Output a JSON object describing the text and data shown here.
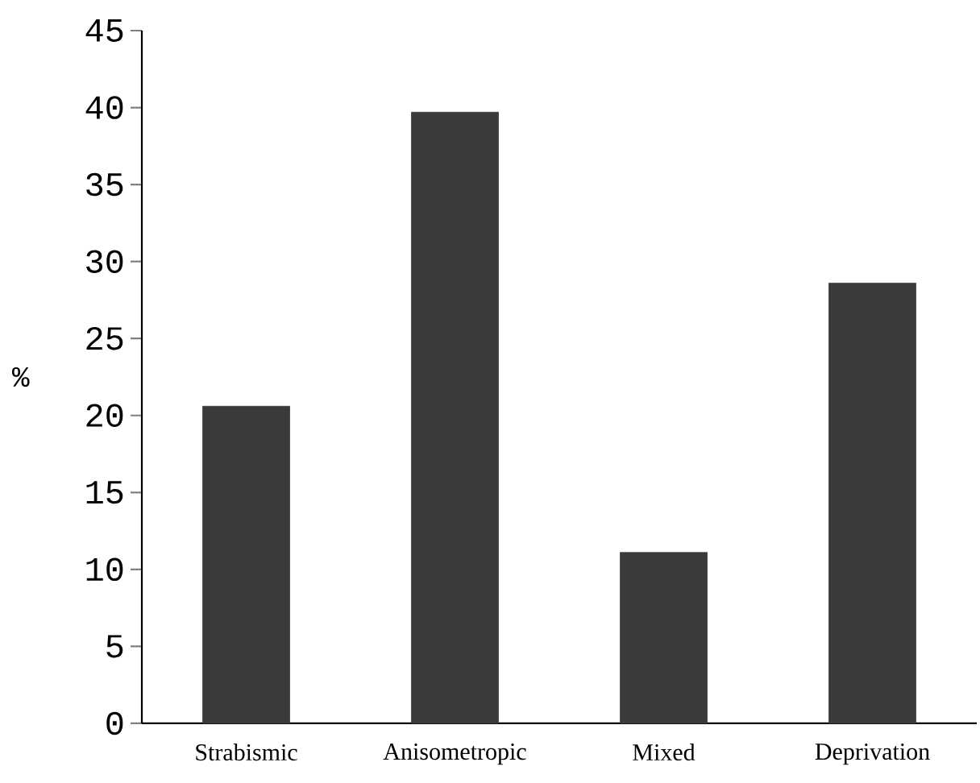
{
  "chart_data": {
    "type": "bar",
    "ylabel": "%",
    "categories": [
      "Strabismic",
      "Anisometropic",
      "Mixed",
      "Deprivation"
    ],
    "values": [
      20.6,
      39.7,
      11.1,
      28.6
    ],
    "color": "#3a3a3a",
    "ylim": [
      0,
      45
    ],
    "yticks": [
      0,
      5,
      10,
      15,
      20,
      25,
      30,
      35,
      40,
      45
    ],
    "grid": false
  }
}
